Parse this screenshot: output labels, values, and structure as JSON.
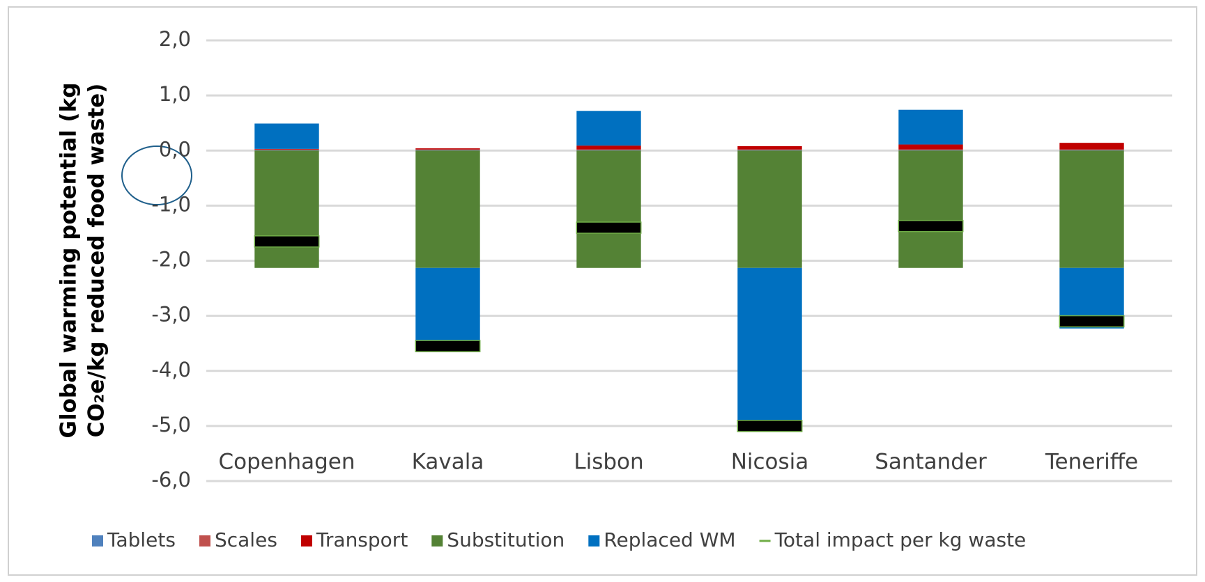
{
  "chart_data": {
    "type": "bar",
    "stacked": true,
    "y_label_lines": [
      "Global warming potential (kg",
      "CO₂e/kg reduced food waste)"
    ],
    "categories": [
      "Copenhagen",
      "Kavala",
      "Lisbon",
      "Nicosia",
      "Santander",
      "Teneriffe"
    ],
    "series": [
      {
        "name": "Tablets",
        "color": "#4f81bd",
        "values": [
          0.01,
          0.01,
          0.01,
          0.01,
          0.01,
          0.01
        ]
      },
      {
        "name": "Scales",
        "color": "#c0504d",
        "values": [
          0.01,
          0.01,
          0.01,
          0.01,
          0.01,
          0.01
        ]
      },
      {
        "name": "Transport",
        "color": "#c00000",
        "values": [
          0.01,
          0.02,
          0.07,
          0.06,
          0.09,
          0.12
        ]
      },
      {
        "name": "Substitution",
        "color": "#548235",
        "values": [
          -2.13,
          -2.13,
          -2.13,
          -2.13,
          -2.13,
          -2.13
        ]
      },
      {
        "name": "Replaced WM",
        "color": "#0070c0",
        "values": [
          0.46,
          -1.45,
          0.63,
          -2.95,
          0.63,
          -1.1
        ]
      },
      {
        "name": "Total impact per kg waste",
        "color": "#70ad47",
        "type": "marker",
        "values": [
          -1.65,
          -3.55,
          -1.4,
          -5.0,
          -1.37,
          -3.1
        ]
      }
    ],
    "ylim": [
      -6,
      2
    ],
    "yticks": [
      {
        "value": 2,
        "label": "2,0"
      },
      {
        "value": 1,
        "label": "1,0"
      },
      {
        "value": 0,
        "label": "0,0"
      },
      {
        "value": -1,
        "label": "-1,0"
      },
      {
        "value": -2,
        "label": "-2,0"
      },
      {
        "value": -3,
        "label": "-3,0"
      },
      {
        "value": -4,
        "label": "-4,0"
      },
      {
        "value": -5,
        "label": "-5,0"
      },
      {
        "value": -6,
        "label": "-6,0"
      }
    ],
    "grid": true,
    "legend": "bottom"
  }
}
